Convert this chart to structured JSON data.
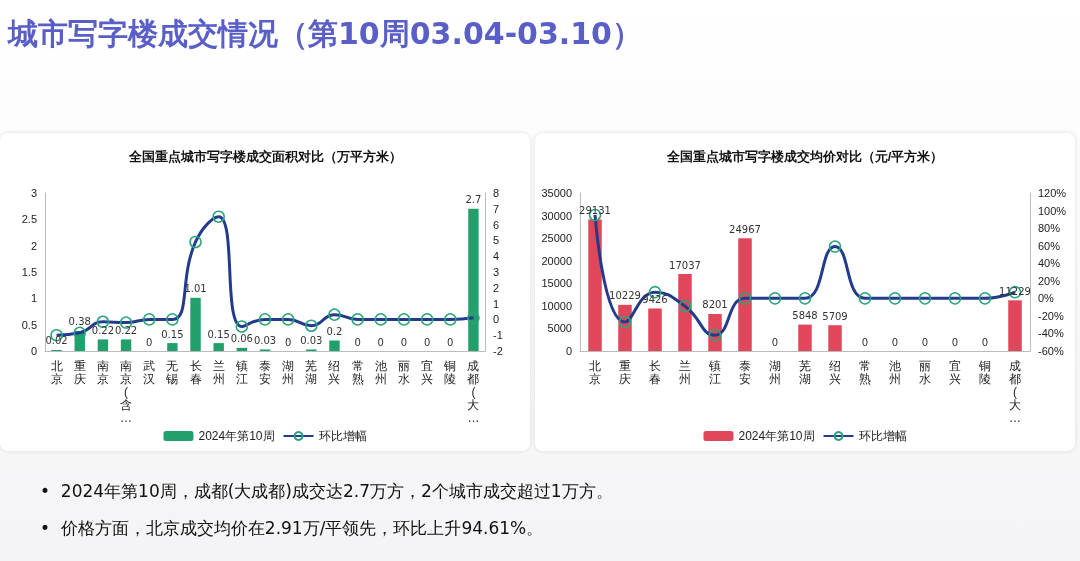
{
  "chart_data": [
    {
      "type": "other",
      "title": "城市写字楼成交情况（第10周03.04-03.10）",
      "annotations": [
        "•  2024年第10周，成都(大成都)成交达2.7万方，2个城市成交超过1万方。",
        "•  价格方面，北京成交均价在2.91万/平领先，环比上升94.61%。"
      ]
    },
    {
      "type": "bar",
      "title": "全国重点城市写字楼成交面积对比（万平方米）",
      "categories": [
        "北京",
        "重庆",
        "南京",
        "南京(含…",
        "武汉",
        "无锡",
        "长春",
        "兰州",
        "镇江",
        "泰安",
        "湖州",
        "芜湖",
        "绍兴",
        "常熟",
        "池州",
        "丽水",
        "宜兴",
        "铜陵",
        "成都(大…"
      ],
      "series": [
        {
          "name": "2024年第10周",
          "type": "bar",
          "color": "#21a06c",
          "values": [
            0.02,
            0.38,
            0.22,
            0.22,
            0,
            0.15,
            1.01,
            0.15,
            0.06,
            0.03,
            0,
            0.03,
            0.2,
            0,
            0,
            0,
            0,
            0,
            2.7
          ],
          "value_labels": [
            "0.02",
            "0.38",
            "0.22",
            "0.22",
            "0",
            "0.15",
            "1.01",
            "0.15",
            "0.06",
            "0.03",
            "0",
            "0.03",
            "0.2",
            "0",
            "0",
            "0",
            "0",
            "0",
            "2.7"
          ]
        },
        {
          "name": "环比增幅",
          "type": "line",
          "axis": "y2",
          "color": "#243a8c",
          "values": [
            -1.0,
            -0.85,
            -0.15,
            -0.2,
            0,
            0,
            4.9,
            6.5,
            -0.45,
            0,
            0,
            -0.4,
            0.3,
            0,
            0,
            0,
            0,
            0,
            0.1
          ]
        }
      ],
      "ylim": [
        0,
        3
      ],
      "yticks": [
        0,
        0.5,
        1,
        1.5,
        2,
        2.5,
        3
      ],
      "y2lim": [
        -2,
        8
      ],
      "y2ticks": [
        -2,
        -1,
        0,
        1,
        2,
        3,
        4,
        5,
        6,
        7,
        8
      ],
      "legend": "bottom",
      "marker": "circle"
    },
    {
      "type": "bar",
      "title": "全国重点城市写字楼成交均价对比（元/平方米）",
      "categories": [
        "北京",
        "重庆",
        "长春",
        "兰州",
        "镇江",
        "泰安",
        "湖州",
        "芜湖",
        "绍兴",
        "常熟",
        "池州",
        "丽水",
        "宜兴",
        "铜陵",
        "成都(大…"
      ],
      "series": [
        {
          "name": "2024年第10周",
          "type": "bar",
          "color": "#e0475b",
          "values": [
            29131,
            10229,
            9426,
            17037,
            8201,
            24967,
            0,
            5848,
            5709,
            0,
            0,
            0,
            0,
            0,
            11229
          ],
          "value_labels": [
            "29131",
            "10229",
            "9426",
            "17037",
            "8201",
            "24967",
            "0",
            "5848",
            "5709",
            "0",
            "0",
            "0",
            "0",
            "0",
            "11229"
          ]
        },
        {
          "name": "环比增幅",
          "type": "line",
          "axis": "y2",
          "color": "#243a8c",
          "values": [
            95,
            -27,
            7,
            -9,
            -42,
            0,
            0,
            0,
            59,
            0,
            0,
            0,
            0,
            0,
            7
          ]
        }
      ],
      "ylim": [
        0,
        35000
      ],
      "yticks": [
        0,
        5000,
        10000,
        15000,
        20000,
        25000,
        30000,
        35000
      ],
      "y2lim": [
        -60,
        120
      ],
      "y2ticks": [
        {
          "value": -60,
          "label": "-60%"
        },
        {
          "value": -40,
          "label": "-40%"
        },
        {
          "value": -20,
          "label": "-20%"
        },
        {
          "value": 0,
          "label": "0%"
        },
        {
          "value": 20,
          "label": "20%"
        },
        {
          "value": 40,
          "label": "40%"
        },
        {
          "value": 60,
          "label": "60%"
        },
        {
          "value": 80,
          "label": "80%"
        },
        {
          "value": 100,
          "label": "100%"
        },
        {
          "value": 120,
          "label": "120%"
        }
      ],
      "legend": "bottom",
      "marker": "circle"
    }
  ]
}
